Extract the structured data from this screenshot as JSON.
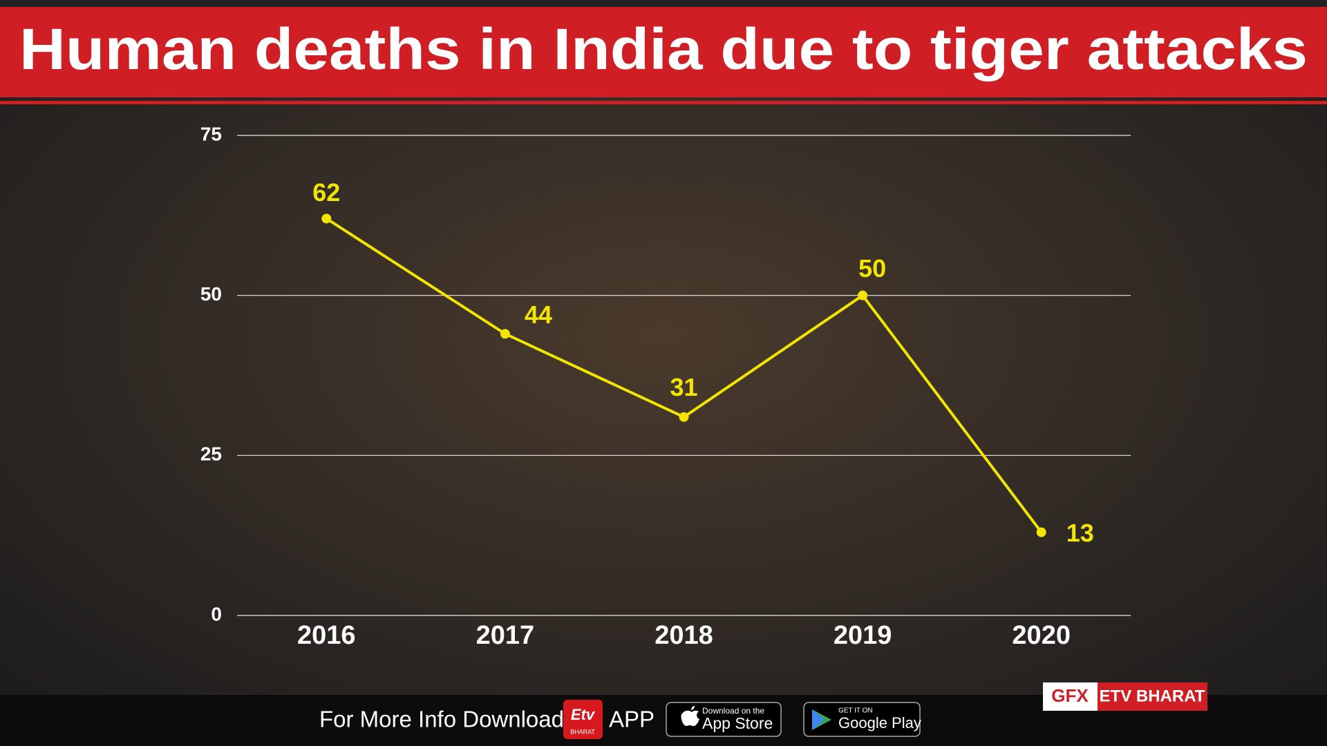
{
  "chart_data": {
    "type": "line",
    "title": "Human deaths in India due to tiger attacks",
    "categories": [
      "2016",
      "2017",
      "2018",
      "2019",
      "2020"
    ],
    "values": [
      62,
      44,
      31,
      50,
      13
    ],
    "color": "#f2e600",
    "ylim": [
      0,
      75
    ],
    "yticks": [
      0,
      25,
      50,
      75
    ],
    "grid": true
  },
  "footer": {
    "download_text": "For More Info Download",
    "logo_text": "Etv",
    "logo_sub": "BHARAT",
    "app_text": "APP",
    "app_store_small": "Download on the",
    "app_store": "App Store",
    "google_small": "GET IT ON",
    "google_play": "Google Play",
    "gfx": "GFX",
    "brand": "ETV BHARAT"
  }
}
